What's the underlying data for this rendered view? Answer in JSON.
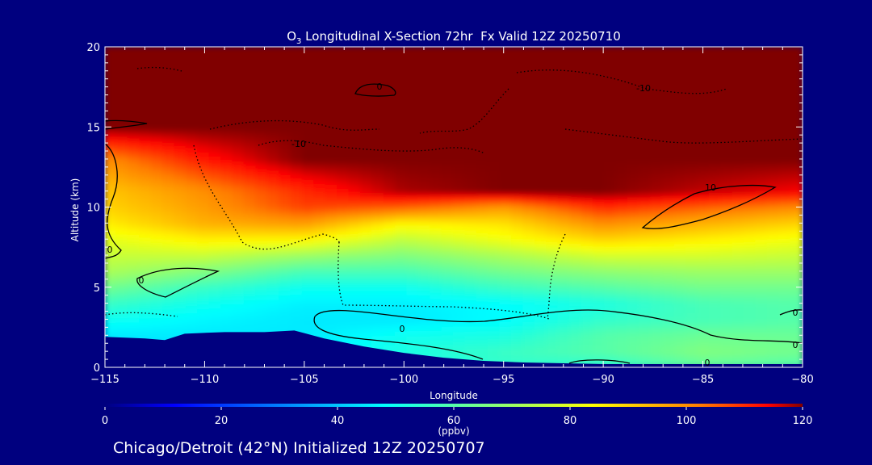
{
  "chart_data": {
    "type": "heatmap",
    "title_species": "O",
    "title_subscript": "3",
    "title_rest": " Longitudinal X-Section 72hr  Fx Valid 12Z 20250710",
    "xlabel": "Longitude",
    "ylabel": "Altitude (km)",
    "xlim": [
      -115,
      -80
    ],
    "ylim": [
      0,
      20
    ],
    "x_ticks": [
      -115,
      -110,
      -105,
      -100,
      -95,
      -90,
      -85,
      -80
    ],
    "x_tick_labels": [
      "−115",
      "−110",
      "−105",
      "−100",
      "−95",
      "−90",
      "−85",
      "−80"
    ],
    "y_ticks": [
      0,
      5,
      10,
      15,
      20
    ],
    "y_tick_labels": [
      "0",
      "5",
      "10",
      "15",
      "20"
    ],
    "colorbar": {
      "min": 0,
      "max": 120,
      "ticks": [
        0,
        20,
        40,
        60,
        80,
        100,
        120
      ],
      "tick_labels": [
        "0",
        "20",
        "40",
        "60",
        "80",
        "100",
        "120"
      ],
      "label": "(ppbv)"
    },
    "footer": "Chicago/Detroit (42°N) Initialized 12Z 20250707",
    "contour_labels": [
      "0",
      "-10",
      "10",
      "-10",
      "0",
      "0",
      "0",
      "0",
      "0",
      "0"
    ],
    "surface_km": [
      [
        -115,
        1.9
      ],
      [
        -113,
        1.8
      ],
      [
        -112,
        1.7
      ],
      [
        -111,
        2.1
      ],
      [
        -109,
        2.2
      ],
      [
        -107,
        2.2
      ],
      [
        -105.5,
        2.3
      ],
      [
        -104,
        1.8
      ],
      [
        -102,
        1.3
      ],
      [
        -100,
        0.9
      ],
      [
        -98,
        0.6
      ],
      [
        -96,
        0.4
      ],
      [
        -94,
        0.3
      ],
      [
        -90,
        0.2
      ],
      [
        -85,
        0.2
      ],
      [
        -80,
        0.2
      ]
    ],
    "ozone_ppbv": {
      "x": [
        -115,
        -110,
        -105,
        -100,
        -95,
        -90,
        -85,
        -80
      ],
      "levels_km": [
        {
          "z": 20,
          "values": [
            120,
            120,
            120,
            120,
            120,
            120,
            120,
            120
          ]
        },
        {
          "z": 15,
          "values": [
            120,
            120,
            120,
            120,
            120,
            120,
            120,
            120
          ]
        },
        {
          "z": 13,
          "values": [
            100,
            112,
            120,
            120,
            120,
            120,
            120,
            120
          ]
        },
        {
          "z": 11,
          "values": [
            92,
            100,
            110,
            118,
            120,
            120,
            117,
            114
          ]
        },
        {
          "z": 10,
          "values": [
            90,
            98,
            108,
            105,
            98,
            110,
            105,
            100
          ]
        },
        {
          "z": 9,
          "values": [
            86,
            95,
            98,
            85,
            88,
            100,
            95,
            90
          ]
        },
        {
          "z": 8,
          "values": [
            80,
            86,
            85,
            75,
            82,
            90,
            86,
            82
          ]
        },
        {
          "z": 7,
          "values": [
            76,
            76,
            70,
            66,
            72,
            78,
            78,
            76
          ]
        },
        {
          "z": 6,
          "values": [
            72,
            66,
            58,
            58,
            64,
            68,
            70,
            70
          ]
        },
        {
          "z": 5,
          "values": [
            64,
            56,
            50,
            50,
            56,
            60,
            64,
            64
          ]
        },
        {
          "z": 4,
          "values": [
            56,
            50,
            46,
            46,
            48,
            52,
            58,
            60
          ]
        },
        {
          "z": 3,
          "values": [
            50,
            47,
            45,
            45,
            48,
            55,
            58,
            60
          ]
        },
        {
          "z": 2,
          "values": [
            45,
            45,
            45,
            50,
            52,
            60,
            63,
            63
          ]
        },
        {
          "z": 1,
          "values": [
            42,
            44,
            45,
            52,
            56,
            60,
            66,
            64
          ]
        },
        {
          "z": 0.3,
          "values": [
            40,
            40,
            42,
            50,
            55,
            55,
            62,
            60
          ]
        }
      ]
    }
  }
}
